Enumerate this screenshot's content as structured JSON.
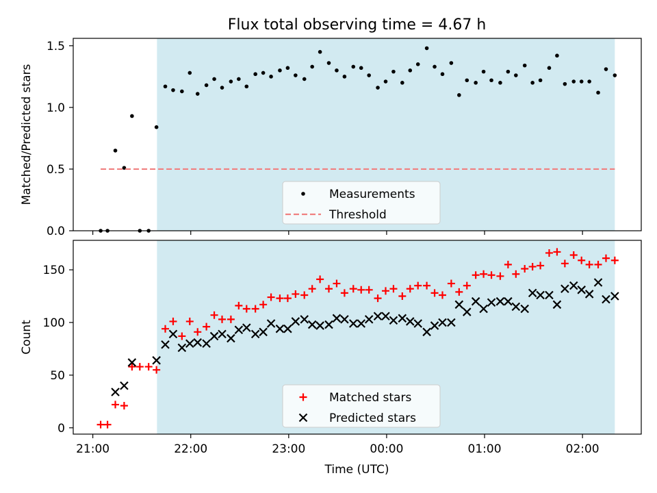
{
  "chart_data": {
    "title": "Flux total observing time = 4.67 h",
    "xlabel": "Time (UTC)",
    "x_ticks": [
      "21:00",
      "22:00",
      "23:00",
      "00:00",
      "01:00",
      "02:00"
    ],
    "x_tick_hours": [
      21,
      22,
      23,
      24,
      25,
      26
    ],
    "x_range_hours": [
      20.8,
      26.6
    ],
    "shaded_span_hours": [
      21.655,
      26.33
    ],
    "colors": {
      "shade": "#add8e6",
      "matched": "#ff0000",
      "predicted": "#000000",
      "threshold": "#f08080",
      "measurements": "#000000"
    },
    "panels": [
      {
        "type": "scatter",
        "ylabel": "Matched/Predicted stars",
        "ylim": [
          0,
          1.56
        ],
        "yticks": [
          0.0,
          0.5,
          1.0,
          1.5
        ],
        "ytick_labels": [
          "0.0",
          "0.5",
          "1.0",
          "1.5"
        ],
        "legend": "bottom-center",
        "series": [
          {
            "name": "Measurements",
            "marker": "dot",
            "x": [
              21.08,
              21.15,
              21.23,
              21.32,
              21.4,
              21.48,
              21.57,
              21.65,
              21.74,
              21.82,
              21.91,
              21.99,
              22.07,
              22.16,
              22.24,
              22.32,
              22.41,
              22.49,
              22.57,
              22.66,
              22.74,
              22.82,
              22.91,
              22.99,
              23.07,
              23.16,
              23.24,
              23.32,
              23.41,
              23.49,
              23.57,
              23.66,
              23.74,
              23.82,
              23.91,
              23.99,
              24.07,
              24.16,
              24.24,
              24.32,
              24.41,
              24.49,
              24.57,
              24.66,
              24.74,
              24.82,
              24.91,
              24.99,
              25.07,
              25.16,
              25.24,
              25.32,
              25.41,
              25.49,
              25.57,
              25.66,
              25.74,
              25.82,
              25.91,
              25.99,
              26.07,
              26.16,
              26.24,
              26.33
            ],
            "y": [
              0.0,
              0.0,
              0.65,
              0.51,
              0.93,
              0.0,
              0.0,
              0.84,
              1.17,
              1.14,
              1.13,
              1.28,
              1.11,
              1.18,
              1.23,
              1.16,
              1.21,
              1.23,
              1.17,
              1.27,
              1.28,
              1.25,
              1.3,
              1.32,
              1.26,
              1.23,
              1.33,
              1.45,
              1.36,
              1.3,
              1.25,
              1.33,
              1.32,
              1.26,
              1.16,
              1.21,
              1.29,
              1.2,
              1.3,
              1.35,
              1.48,
              1.33,
              1.27,
              1.36,
              1.1,
              1.22,
              1.2,
              1.29,
              1.22,
              1.2,
              1.29,
              1.26,
              1.34,
              1.2,
              1.22,
              1.32,
              1.42,
              1.19,
              1.21,
              1.21,
              1.21,
              1.12,
              1.31,
              1.26
            ]
          },
          {
            "name": "Threshold",
            "marker": "dashed-line",
            "x": [
              21.08,
              26.33
            ],
            "y": [
              0.5,
              0.5
            ]
          }
        ]
      },
      {
        "type": "scatter",
        "ylabel": "Count",
        "ylim": [
          -6,
          178
        ],
        "yticks": [
          0,
          50,
          100,
          150
        ],
        "ytick_labels": [
          "0",
          "50",
          "100",
          "150"
        ],
        "legend": "bottom-center",
        "series": [
          {
            "name": "Matched stars",
            "marker": "plus",
            "x": [
              21.08,
              21.15,
              21.23,
              21.32,
              21.4,
              21.48,
              21.57,
              21.65,
              21.74,
              21.82,
              21.91,
              21.99,
              22.07,
              22.16,
              22.24,
              22.32,
              22.41,
              22.49,
              22.57,
              22.66,
              22.74,
              22.82,
              22.91,
              22.99,
              23.07,
              23.16,
              23.24,
              23.32,
              23.41,
              23.49,
              23.57,
              23.66,
              23.74,
              23.82,
              23.91,
              23.99,
              24.07,
              24.16,
              24.24,
              24.32,
              24.41,
              24.49,
              24.57,
              24.66,
              24.74,
              24.82,
              24.91,
              24.99,
              25.07,
              25.16,
              25.24,
              25.32,
              25.41,
              25.49,
              25.57,
              25.66,
              25.74,
              25.82,
              25.91,
              25.99,
              26.07,
              26.16,
              26.24,
              26.33
            ],
            "y": [
              3,
              3,
              22,
              21,
              58,
              58,
              58,
              55,
              94,
              101,
              87,
              101,
              91,
              96,
              107,
              103,
              103,
              116,
              113,
              113,
              117,
              124,
              123,
              123,
              127,
              126,
              132,
              141,
              132,
              137,
              128,
              132,
              131,
              131,
              123,
              130,
              132,
              125,
              132,
              135,
              135,
              128,
              126,
              137,
              129,
              135,
              145,
              146,
              145,
              144,
              155,
              146,
              151,
              153,
              154,
              166,
              167,
              156,
              164,
              159,
              155,
              155,
              161,
              159
            ]
          },
          {
            "name": "Predicted stars",
            "marker": "x",
            "x": [
              21.23,
              21.32,
              21.4,
              21.65,
              21.74,
              21.82,
              21.91,
              21.99,
              22.07,
              22.16,
              22.24,
              22.32,
              22.41,
              22.49,
              22.57,
              22.66,
              22.74,
              22.82,
              22.91,
              22.99,
              23.07,
              23.16,
              23.24,
              23.32,
              23.41,
              23.49,
              23.57,
              23.66,
              23.74,
              23.82,
              23.91,
              23.99,
              24.07,
              24.16,
              24.24,
              24.32,
              24.41,
              24.49,
              24.57,
              24.66,
              24.74,
              24.82,
              24.91,
              24.99,
              25.07,
              25.16,
              25.24,
              25.32,
              25.41,
              25.49,
              25.57,
              25.66,
              25.74,
              25.82,
              25.91,
              25.99,
              26.07,
              26.16,
              26.24,
              26.33
            ],
            "y": [
              34,
              40,
              62,
              64,
              79,
              89,
              76,
              80,
              81,
              80,
              87,
              89,
              85,
              93,
              95,
              89,
              91,
              99,
              94,
              94,
              101,
              103,
              98,
              97,
              98,
              104,
              103,
              99,
              99,
              103,
              106,
              106,
              102,
              104,
              101,
              99,
              91,
              97,
              100,
              100,
              117,
              110,
              120,
              113,
              119,
              120,
              120,
              115,
              113,
              128,
              126,
              126,
              117,
              132,
              135,
              131,
              127,
              138,
              122,
              125
            ]
          }
        ]
      }
    ]
  }
}
